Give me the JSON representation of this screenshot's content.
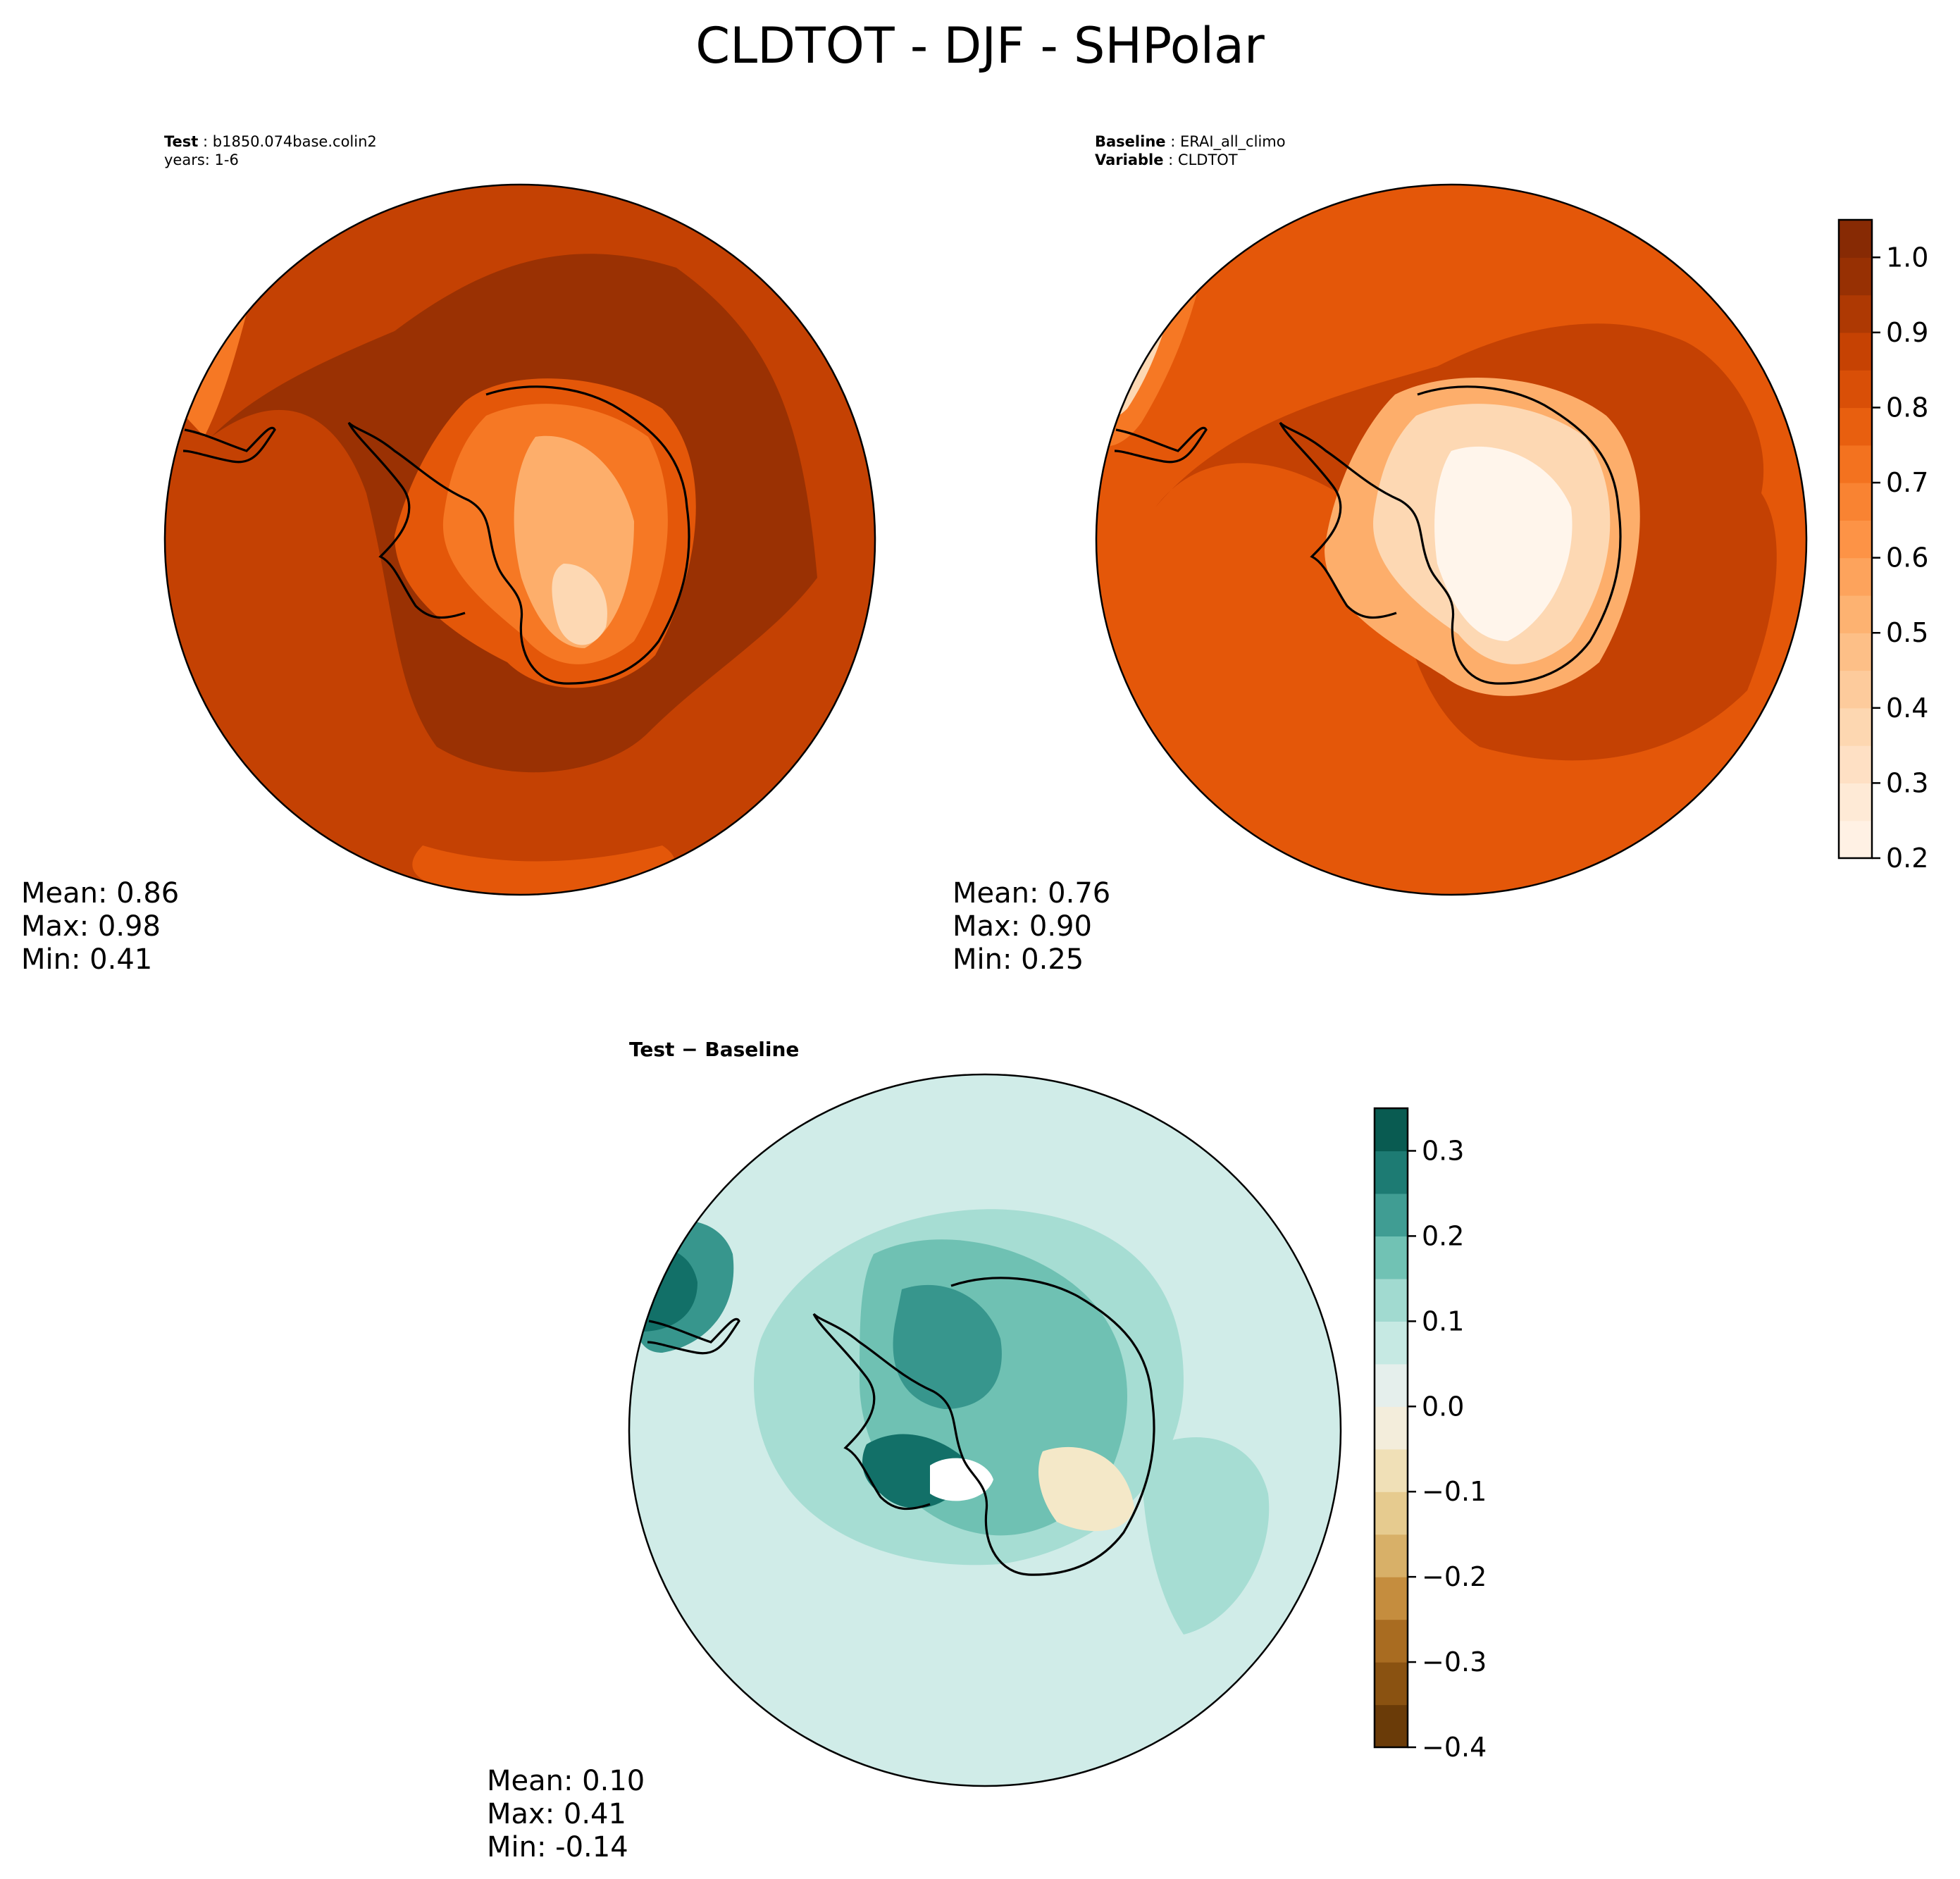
{
  "title": "CLDTOT - DJF - SHPolar",
  "panels": {
    "test": {
      "header_label_1": "Test",
      "header_value_1": "b1850.074base.colin2",
      "header_line_2": "years: 1-6",
      "stats": {
        "mean": "Mean:  0.86",
        "max": "Max:  0.98",
        "min": "Min:  0.41"
      }
    },
    "baseline": {
      "header_label_1": "Baseline",
      "header_value_1": "ERAI_all_climo",
      "header_label_2": "Variable",
      "header_value_2": "CLDTOT",
      "stats": {
        "mean": "Mean:  0.76",
        "max": "Max:  0.90",
        "min": "Min:  0.25"
      }
    },
    "diff": {
      "title": "Test − Baseline",
      "stats": {
        "mean": "Mean:  0.10",
        "max": "Max:  0.41",
        "min": "Min: -0.14"
      }
    }
  },
  "chart_data": [
    {
      "type": "heatmap",
      "projection": "south-polar-stereographic",
      "name": "Test",
      "variable": "CLDTOT",
      "season": "DJF",
      "mean": 0.86,
      "max": 0.98,
      "min": 0.41,
      "colormap": "Oranges",
      "colorbar": {
        "range": [
          0.2,
          1.05
        ],
        "levels": 17,
        "tick_labels": [
          "0.2",
          "0.3",
          "0.4",
          "0.5",
          "0.6",
          "0.7",
          "0.8",
          "0.9",
          "1.0"
        ],
        "tick_values": [
          0.2,
          0.3,
          0.4,
          0.5,
          0.6,
          0.7,
          0.8,
          0.9,
          1.0
        ]
      }
    },
    {
      "type": "heatmap",
      "projection": "south-polar-stereographic",
      "name": "Baseline",
      "variable": "CLDTOT",
      "season": "DJF",
      "mean": 0.76,
      "max": 0.9,
      "min": 0.25,
      "colormap": "Oranges",
      "colorbar": {
        "range": [
          0.2,
          1.05
        ],
        "levels": 17,
        "tick_labels": [
          "0.2",
          "0.3",
          "0.4",
          "0.5",
          "0.6",
          "0.7",
          "0.8",
          "0.9",
          "1.0"
        ],
        "tick_values": [
          0.2,
          0.3,
          0.4,
          0.5,
          0.6,
          0.7,
          0.8,
          0.9,
          1.0
        ]
      }
    },
    {
      "type": "heatmap",
      "projection": "south-polar-stereographic",
      "name": "Test − Baseline",
      "variable": "CLDTOT",
      "season": "DJF",
      "mean": 0.1,
      "max": 0.41,
      "min": -0.14,
      "colormap": "BrBG",
      "colorbar": {
        "range": [
          -0.4,
          0.35
        ],
        "levels": 15,
        "tick_labels": [
          "−0.4",
          "−0.3",
          "−0.2",
          "−0.1",
          "0.0",
          "0.1",
          "0.2",
          "0.3"
        ],
        "tick_values": [
          -0.4,
          -0.3,
          -0.2,
          -0.1,
          0.0,
          0.1,
          0.2,
          0.3
        ]
      }
    }
  ],
  "colors": {
    "oranges": [
      "#fff5eb",
      "#fee8d3",
      "#fdd8b3",
      "#fdc48f",
      "#fdae6b",
      "#fd9346",
      "#f67824",
      "#e45709",
      "#c44103",
      "#9a3103",
      "#7f2704"
    ],
    "brbg": [
      "#5a3005",
      "#7f4a0c",
      "#a4661c",
      "#c48c3c",
      "#dab46d",
      "#e9d299",
      "#f4e8c8",
      "#f1f1ee",
      "#d0ece8",
      "#a6ddd3",
      "#6fc1b3",
      "#37968d",
      "#127068",
      "#024b40"
    ],
    "land_outline": "#000000"
  }
}
